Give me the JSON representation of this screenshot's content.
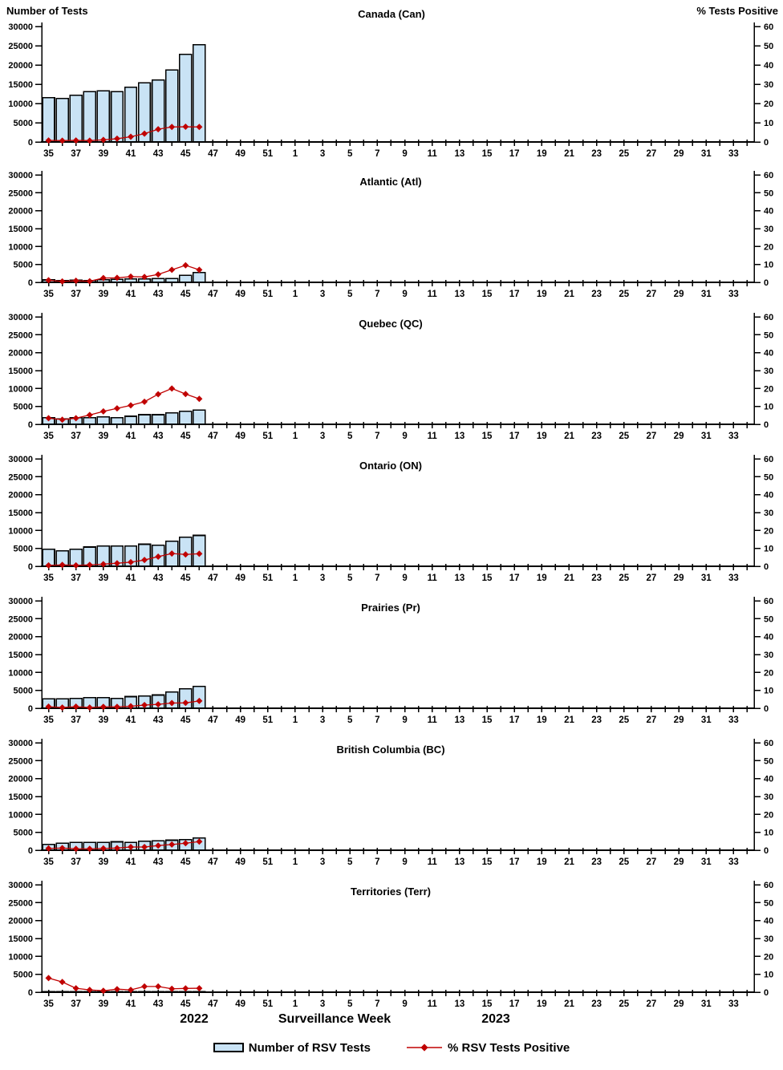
{
  "chart_data": {
    "type": "bar+line small multiples (7 stacked panels, shared axes)",
    "left_axis": {
      "title": "Number of Tests",
      "min": 0,
      "max": 30000,
      "step": 5000
    },
    "right_axis": {
      "title": "% Tests Positive",
      "min": 0,
      "max": 60,
      "step": 10
    },
    "x_axis": {
      "title": "Surveillance Week",
      "year_left": "2022",
      "year_right": "2023",
      "weeks_2022": [
        35,
        36,
        37,
        38,
        39,
        40,
        41,
        42,
        43,
        44,
        45,
        46,
        47,
        48,
        49,
        50,
        51,
        52
      ],
      "weeks_2023": [
        1,
        2,
        3,
        4,
        5,
        6,
        7,
        8,
        9,
        10,
        11,
        12,
        13,
        14,
        15,
        16,
        17,
        18,
        19,
        20,
        21,
        22,
        23,
        24,
        25,
        26,
        27,
        28,
        29,
        30,
        31,
        32,
        33,
        34
      ],
      "tick_label_rule": "only odd week numbers labeled"
    },
    "style": {
      "bar_fill": "#C9E3F5",
      "bar_stroke": "#000000",
      "line_color": "#C00000",
      "axis_color": "#000000"
    },
    "legend": [
      {
        "label": "Number of RSV Tests",
        "series": "bars",
        "color": "#C9E3F5"
      },
      {
        "label": "% RSV Tests Positive",
        "series": "line",
        "color": "#C00000"
      }
    ],
    "data_weeks": [
      35,
      36,
      37,
      38,
      39,
      40,
      41,
      42,
      43,
      44,
      45,
      46
    ],
    "panels": [
      {
        "title": "Canada (Can)",
        "tests": [
          11500,
          11300,
          12100,
          13100,
          13300,
          13100,
          14200,
          15400,
          16100,
          18700,
          22800,
          25300
        ],
        "pct_positive": [
          0.8,
          0.7,
          0.8,
          0.7,
          1.1,
          1.7,
          2.7,
          4.3,
          6.6,
          7.8,
          7.9,
          7.8
        ]
      },
      {
        "title": "Atlantic (Atl)",
        "tests": [
          680,
          510,
          590,
          510,
          760,
          850,
          930,
          930,
          1100,
          1100,
          1950,
          2700
        ],
        "pct_positive": [
          1.2,
          0.5,
          0.9,
          0.6,
          2.4,
          2.5,
          3.2,
          3.0,
          4.4,
          7.0,
          9.5,
          7.0
        ]
      },
      {
        "title": "Quebec (QC)",
        "tests": [
          1850,
          1550,
          1850,
          1850,
          2080,
          1850,
          2230,
          2690,
          2690,
          3150,
          3620,
          4000
        ],
        "pct_positive": [
          3.4,
          2.6,
          3.4,
          5.2,
          7.2,
          8.9,
          10.6,
          12.6,
          16.8,
          20.0,
          16.9,
          14.2
        ]
      },
      {
        "title": "Ontario (ON)",
        "tests": [
          4770,
          4310,
          4770,
          5380,
          5620,
          5620,
          5620,
          6150,
          5850,
          7000,
          8150,
          8620
        ],
        "pct_positive": [
          0.5,
          0.8,
          0.5,
          0.8,
          1.2,
          1.7,
          2.3,
          3.5,
          5.4,
          7.1,
          6.6,
          7.0
        ]
      },
      {
        "title": "Prairies (Pr)",
        "tests": [
          2600,
          2600,
          2750,
          2950,
          2950,
          2750,
          3250,
          3400,
          3700,
          4500,
          5400,
          6100
        ],
        "pct_positive": [
          0.9,
          0.4,
          0.9,
          0.4,
          0.8,
          0.8,
          1.1,
          1.8,
          2.2,
          2.9,
          3.0,
          4.1
        ]
      },
      {
        "title": "British Columbia (BC)",
        "tests": [
          1650,
          1950,
          2200,
          2200,
          2200,
          2350,
          2200,
          2500,
          2650,
          2800,
          3000,
          3400
        ],
        "pct_positive": [
          1.0,
          1.2,
          0.8,
          0.8,
          1.0,
          1.2,
          1.8,
          1.8,
          2.6,
          3.2,
          3.9,
          4.8
        ]
      },
      {
        "title": "Territories (Terr)",
        "tests": [
          80,
          80,
          80,
          80,
          80,
          80,
          80,
          80,
          80,
          80,
          80,
          80
        ],
        "pct_positive": [
          7.9,
          5.7,
          2.2,
          1.3,
          0.8,
          1.7,
          1.3,
          3.2,
          3.2,
          1.9,
          2.1,
          2.2
        ]
      }
    ]
  }
}
